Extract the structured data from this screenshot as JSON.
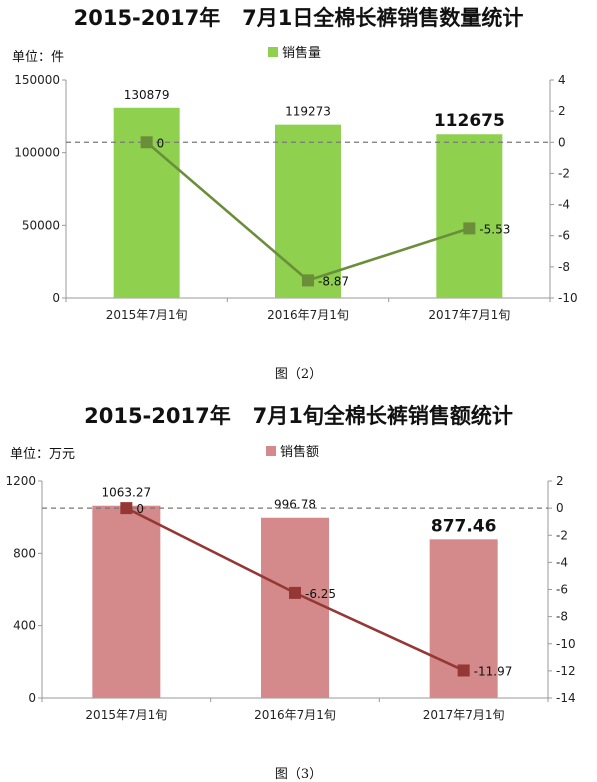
{
  "charts": [
    {
      "title": "2015-2017年   7月1日全棉长裤销售数量统计",
      "unit": "单位：件",
      "legend": "销售量",
      "caption": "图（2）"
    },
    {
      "title": "2015-2017年   7月1旬全棉长裤销售额统计",
      "unit": "单位：万元",
      "legend": "销售额",
      "caption": "图（3）"
    }
  ],
  "chart_data": [
    {
      "type": "bar",
      "categories": [
        "2015年7月1旬",
        "2016年7月1旬",
        "2017年7月1旬"
      ],
      "series": [
        {
          "name": "销售量",
          "values": [
            130879,
            119273,
            112675
          ],
          "labels": [
            "130879",
            "119273",
            "112675"
          ],
          "color": "#8fd14f",
          "axis": "left"
        },
        {
          "name": "",
          "type": "line",
          "values": [
            0,
            -8.87,
            -5.53
          ],
          "labels": [
            "0",
            "-8.87",
            "-5.53"
          ],
          "color": "#6b8e3a",
          "axis": "right"
        }
      ],
      "ylim": [
        0,
        150000
      ],
      "yticks": [
        "0",
        "50000",
        "100000",
        "150000"
      ],
      "y2lim": [
        -10,
        4
      ],
      "y2ticks": [
        "4",
        "2",
        "0",
        "-2",
        "-4",
        "-6",
        "-8",
        "-10"
      ],
      "reference_line": 0,
      "bold_last_label": true,
      "legend_position": "top-center",
      "grid": false
    },
    {
      "type": "bar",
      "categories": [
        "2015年7月1旬",
        "2016年7月1旬",
        "2017年7月1旬"
      ],
      "series": [
        {
          "name": "销售额",
          "values": [
            1063.27,
            996.78,
            877.46
          ],
          "labels": [
            "1063.27",
            "996.78",
            "877.46"
          ],
          "color": "#d48a8a",
          "axis": "left"
        },
        {
          "name": "",
          "type": "line",
          "values": [
            0,
            -6.25,
            -11.97
          ],
          "labels": [
            "0",
            "-6.25",
            "-11.97"
          ],
          "color": "#953735",
          "axis": "right"
        }
      ],
      "ylim": [
        0,
        1200
      ],
      "yticks": [
        "0",
        "400",
        "800",
        "1200"
      ],
      "y2lim": [
        -14,
        2
      ],
      "y2ticks": [
        "2",
        "0",
        "-2",
        "-4",
        "-6",
        "-8",
        "-10",
        "-12",
        "-14"
      ],
      "reference_line": 0,
      "bold_last_label": true,
      "legend_position": "top-center",
      "grid": false
    }
  ]
}
